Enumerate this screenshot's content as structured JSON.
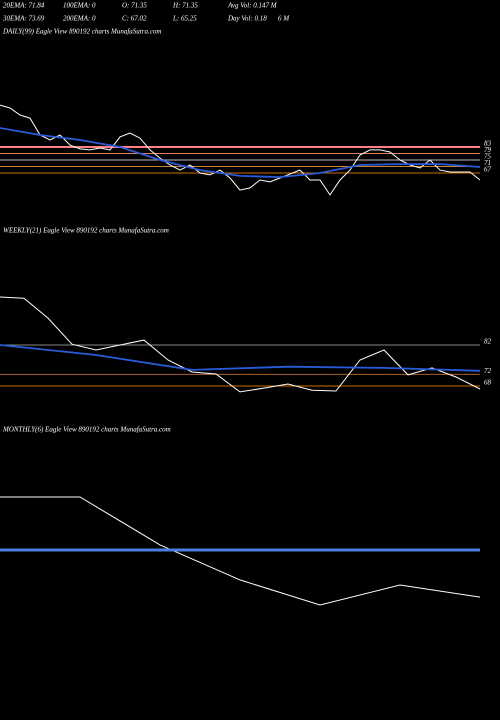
{
  "header": {
    "row1": [
      "20EMA: 71.84",
      "100EMA: 0",
      "O: 71.35",
      "H: 71.35",
      "Avg Vol: 0.147 M"
    ],
    "row2": [
      "30EMA: 73.69",
      "200EMA: 0",
      "C: 67.02",
      "L: 65.25",
      "Day Vol: 0.18",
      "6 M"
    ]
  },
  "chart_data": [
    {
      "type": "line",
      "title": "DAILY(99) Eagle  View  890192  charts MunafaSutra.com",
      "xlim": [
        0,
        48
      ],
      "ylim": [
        45,
        125
      ],
      "yticks": [
        83,
        79,
        75,
        71,
        67
      ],
      "tick_colors": [
        "#ff8080",
        "#e08050",
        "#bbbbbb",
        "#cc8033",
        "#cc6a00"
      ],
      "series": [
        {
          "color": "#ffffff",
          "x": [
            0,
            1,
            2,
            3,
            4,
            5,
            6,
            7,
            8,
            9,
            10,
            11,
            12,
            13,
            14,
            15,
            16,
            17,
            18,
            19,
            20,
            21,
            22,
            23,
            24,
            25,
            26,
            27,
            28,
            29,
            30,
            31,
            32,
            33,
            34,
            35,
            36,
            37,
            38,
            39,
            40,
            41,
            42,
            43,
            44,
            45,
            46,
            47,
            48
          ],
          "values": [
            108.8,
            107,
            102.7,
            100.8,
            90.4,
            87.3,
            90.4,
            84.2,
            81.8,
            81.2,
            82.4,
            81.2,
            89.2,
            91.6,
            88.5,
            81.2,
            76.2,
            71.9,
            68.8,
            71.9,
            67,
            65.8,
            68.8,
            63.9,
            56.5,
            57.8,
            62.7,
            61.5,
            63.9,
            66.4,
            68.8,
            62.7,
            62.7,
            53.5,
            62.7,
            68.8,
            78.1,
            81.2,
            81.2,
            79.9,
            75,
            71.9,
            70.1,
            75,
            68.8,
            67.6,
            67.6,
            67.6,
            62.7
          ]
        },
        {
          "color": "#2a5bd7",
          "x": [
            0,
            4,
            8,
            12,
            16,
            20,
            24,
            28,
            32,
            36,
            40,
            44,
            48
          ],
          "values": [
            94.7,
            90.4,
            87.3,
            83,
            75,
            68.8,
            65.2,
            64.5,
            67,
            71.9,
            72.5,
            72.5,
            70.7
          ]
        }
      ]
    },
    {
      "type": "line",
      "title": "WEEKLY(21) Eagle  View  890192  charts MunafaSutra.com",
      "xlim": [
        0,
        20
      ],
      "ylim": [
        50,
        110
      ],
      "yticks": [
        82,
        72,
        68
      ],
      "tick_colors": [
        "#888888",
        "#aa6030",
        "#cc6a00"
      ],
      "series": [
        {
          "color": "#ffffff",
          "x": [
            0,
            1,
            2,
            3,
            4,
            5,
            6,
            7,
            8,
            9,
            10,
            11,
            12,
            13,
            14,
            15,
            16,
            17,
            18,
            19,
            20
          ],
          "values": [
            98.4,
            98,
            91.2,
            82.3,
            80.3,
            82,
            83.7,
            76.9,
            72.8,
            72.1,
            66,
            67.3,
            68.7,
            66.6,
            66.3,
            76.9,
            80.3,
            71.8,
            74.2,
            71.1,
            67
          ]
        },
        {
          "color": "#2a5bd7",
          "x": [
            0,
            4,
            8,
            12,
            16,
            20
          ],
          "values": [
            82,
            78.6,
            73.5,
            74.6,
            74.2,
            73.2
          ]
        }
      ]
    },
    {
      "type": "line",
      "title": "MONTHLY(6) Eagle  View  890192  charts MunafaSutra.com",
      "xlim": [
        0,
        6
      ],
      "ylim": [
        40,
        120
      ],
      "series": [
        {
          "color": "#ffffff",
          "x": [
            0,
            1,
            2,
            3,
            4,
            5,
            6
          ],
          "values": [
            110.3,
            110.3,
            82.9,
            62.9,
            48.6,
            60,
            53.1
          ]
        },
        {
          "color": "#4a7fe0",
          "x": [
            0,
            6
          ],
          "values": [
            80,
            80
          ]
        }
      ]
    }
  ]
}
